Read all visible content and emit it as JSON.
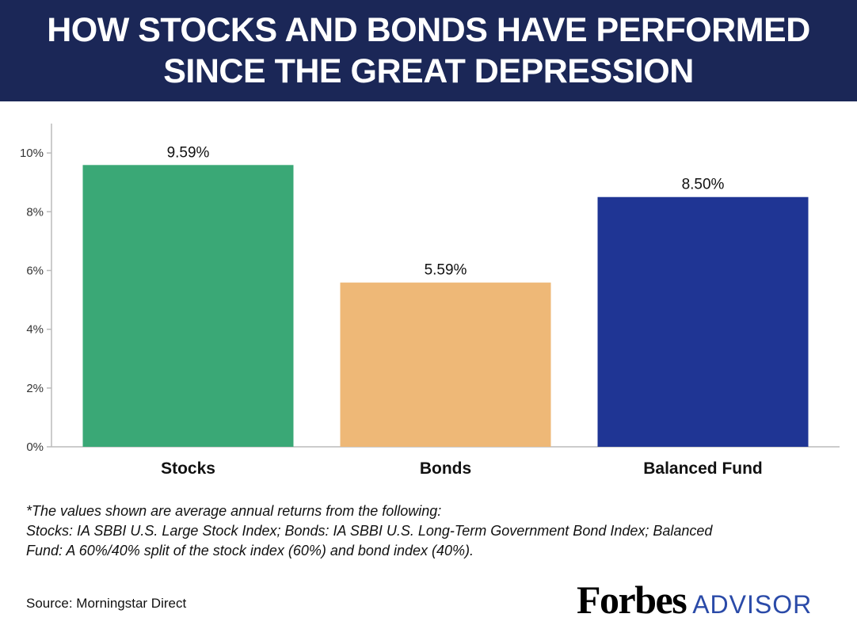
{
  "header": {
    "title_line1": "HOW STOCKS AND BONDS HAVE PERFORMED",
    "title_line2": "SINCE THE GREAT DEPRESSION"
  },
  "chart_data": {
    "type": "bar",
    "categories": [
      "Stocks",
      "Bonds",
      "Balanced Fund"
    ],
    "values": [
      9.59,
      5.59,
      8.5
    ],
    "value_labels": [
      "9.59%",
      "5.59%",
      "8.50%"
    ],
    "colors": [
      "#3aa876",
      "#eeb877",
      "#1f3594"
    ],
    "yticks": [
      0,
      2,
      4,
      6,
      8,
      10
    ],
    "ytick_labels": [
      "0%",
      "2%",
      "4%",
      "6%",
      "8%",
      "10%"
    ],
    "ylim": [
      0,
      11
    ],
    "grid": false
  },
  "footnote": {
    "line1": "*The values shown are average annual returns from the following:",
    "line2": "Stocks: IA SBBI U.S. Large Stock Index; Bonds: IA SBBI U.S. Long-Term Government Bond Index; Balanced",
    "line3": "Fund: A 60%/40% split of the stock index (60%) and bond index (40%)."
  },
  "source": "Source: Morningstar Direct",
  "logo": {
    "brand": "Forbes",
    "suffix": "ADVISOR"
  }
}
